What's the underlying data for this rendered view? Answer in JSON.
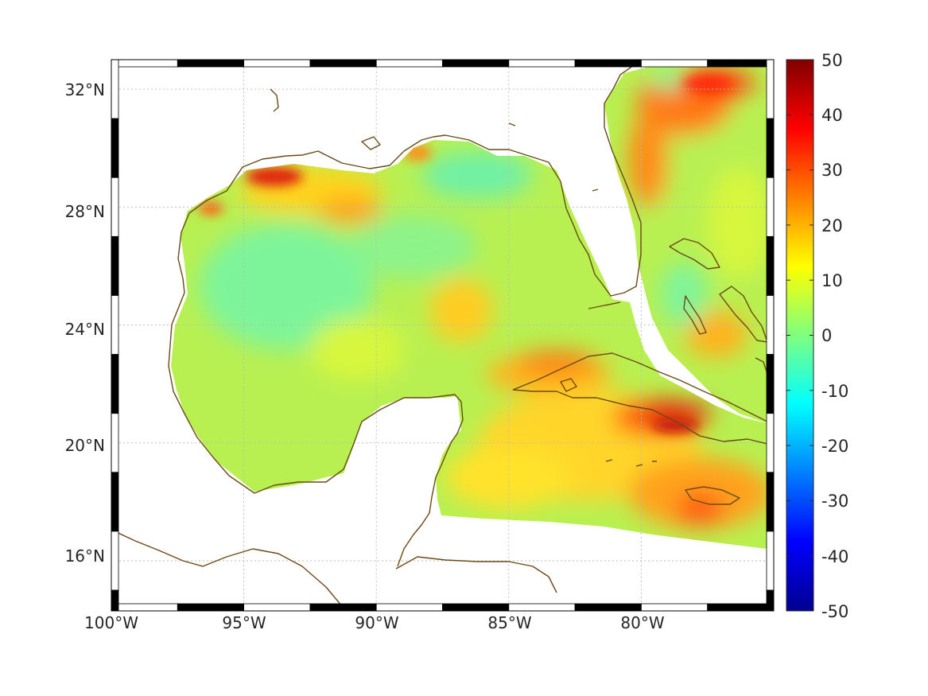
{
  "map": {
    "type": "gridded-field-map",
    "region": "Gulf of Mexico and northwestern Caribbean",
    "colormap": "jet",
    "colorbar": {
      "min": -50,
      "max": 50,
      "tick_labels": [
        "50",
        "40",
        "30",
        "20",
        "10",
        "0",
        "-10",
        "-20",
        "-30",
        "-40",
        "-50"
      ]
    },
    "axes": {
      "lon_range_deg": [
        -100,
        -75
      ],
      "lat_range_deg": [
        14.3,
        33
      ],
      "lon_tick_labels": [
        "100°W",
        "95°W",
        "90°W",
        "85°W",
        "80°W"
      ],
      "lat_tick_labels": [
        "32°N",
        "28°N",
        "24°N",
        "20°N",
        "16°N"
      ],
      "grid": true
    },
    "colors": {
      "coastline": "#6b4a17",
      "frame_dark": "#000000",
      "frame_light": "#ffffff",
      "grid": "#b9b9b9"
    }
  }
}
